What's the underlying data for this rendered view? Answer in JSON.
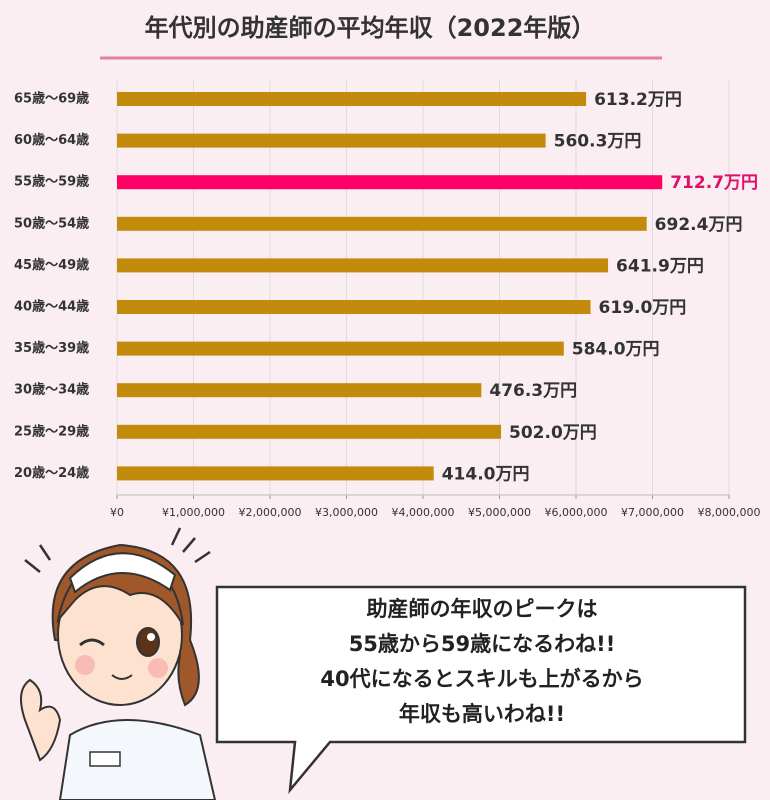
{
  "chart_data": {
    "type": "hbar",
    "title": "年代別の助産師の平均年収（2022年版）",
    "categories": [
      "65歳〜69歳",
      "60歳〜64歳",
      "55歳〜59歳",
      "50歳〜54歳",
      "45歳〜49歳",
      "40歳〜44歳",
      "35歳〜39歳",
      "30歳〜34歳",
      "25歳〜29歳",
      "20歳〜24歳"
    ],
    "values": [
      6132000,
      5603000,
      7127000,
      6924000,
      6419000,
      6190000,
      5840000,
      4763000,
      5020000,
      4140000
    ],
    "value_labels": [
      "613.2万円",
      "560.3万円",
      "712.7万円",
      "692.4万円",
      "641.9万円",
      "619.0万円",
      "584.0万円",
      "476.3万円",
      "502.0万円",
      "414.0万円"
    ],
    "colors": [
      "#c38b0b",
      "#c38b0b",
      "#ff0066",
      "#c38b0b",
      "#c38b0b",
      "#c38b0b",
      "#c38b0b",
      "#c38b0b",
      "#c38b0b",
      "#c38b0b"
    ],
    "xlim": [
      0,
      8000000
    ],
    "xticks": [
      {
        "value": 0,
        "label": "¥0"
      },
      {
        "value": 1000000,
        "label": "¥1,000,000"
      },
      {
        "value": 2000000,
        "label": "¥2,000,000"
      },
      {
        "value": 3000000,
        "label": "¥3,000,000"
      },
      {
        "value": 4000000,
        "label": "¥4,000,000"
      },
      {
        "value": 5000000,
        "label": "¥5,000,000"
      },
      {
        "value": 6000000,
        "label": "¥6,000,000"
      },
      {
        "value": 7000000,
        "label": "¥7,000,000"
      },
      {
        "value": 8000000,
        "label": "¥8,000,000"
      }
    ],
    "grid": true,
    "annotations": [
      "助産師の年収のピークは",
      "55歳から59歳になるわね!!",
      "40代になるとスキルも上がるから",
      "年収も高いわね!!"
    ]
  }
}
